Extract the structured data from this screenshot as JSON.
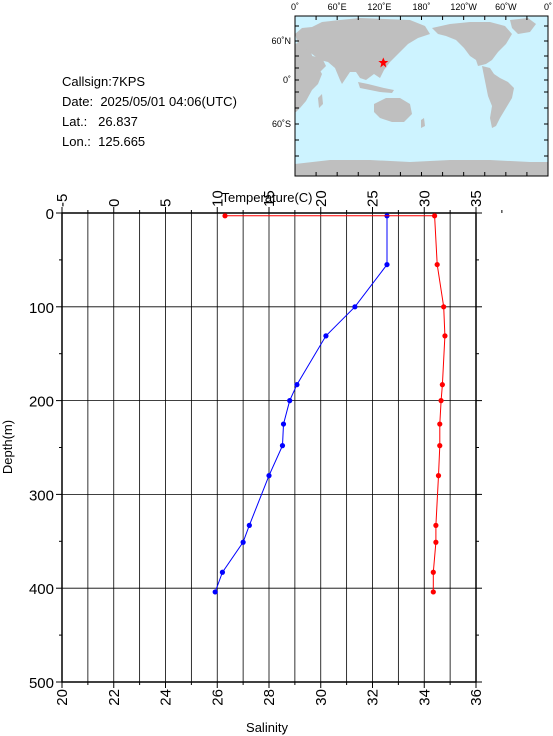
{
  "meta": {
    "callsign": "Callsign:7KPS",
    "date_label": "Date:",
    "date": "2025/05/01 04:06(UTC)",
    "lat_label": "Lat.:",
    "lat": "26.837",
    "lon_label": "Lon.:",
    "lon": "125.665"
  },
  "map": {
    "top_ticks": [
      "0˚",
      "60˚E",
      "120˚E",
      "180˚",
      "120˚W",
      "60˚W",
      "0˚"
    ],
    "left_ticks": [
      "60˚N",
      "0˚",
      "60˚S"
    ],
    "ocean_color": "#cdf3ff",
    "land_color": "#bfbfbf",
    "marker_color": "#ff0000"
  },
  "chart_data": {
    "type": "line",
    "xlabel_top": "Temperature(C)",
    "xlabel_bottom": "Salinity",
    "ylabel": "Depth(m)",
    "temperature_ticks": [
      "-5",
      "0",
      "5",
      "10",
      "15",
      "20",
      "25",
      "30",
      "35"
    ],
    "salinity_ticks": [
      "20",
      "22",
      "24",
      "26",
      "28",
      "30",
      "32",
      "34",
      "36"
    ],
    "depth_ticks": [
      "0",
      "100",
      "200",
      "300",
      "400",
      "500"
    ],
    "temperature_range": [
      -5,
      35
    ],
    "salinity_range": [
      20,
      36
    ],
    "depth_range": [
      0,
      500
    ],
    "grid": true,
    "series": [
      {
        "axis": "temperature",
        "color": "#0000ff",
        "points": [
          {
            "x": 26.4,
            "depth": 3
          },
          {
            "x": 26.4,
            "depth": 55
          },
          {
            "x": 23.3,
            "depth": 100
          },
          {
            "x": 20.5,
            "depth": 131
          },
          {
            "x": 17.7,
            "depth": 183
          },
          {
            "x": 17.0,
            "depth": 200
          },
          {
            "x": 16.4,
            "depth": 225
          },
          {
            "x": 16.3,
            "depth": 248
          },
          {
            "x": 15.0,
            "depth": 280
          },
          {
            "x": 13.1,
            "depth": 333
          },
          {
            "x": 12.5,
            "depth": 351
          },
          {
            "x": 10.5,
            "depth": 383
          },
          {
            "x": 9.8,
            "depth": 404
          }
        ]
      },
      {
        "axis": "salinity",
        "color": "#ff0000",
        "points": [
          {
            "x": 26.3,
            "depth": 3
          },
          {
            "x": 34.4,
            "depth": 3
          },
          {
            "x": 34.5,
            "depth": 55
          },
          {
            "x": 34.75,
            "depth": 100
          },
          {
            "x": 34.8,
            "depth": 131
          },
          {
            "x": 34.7,
            "depth": 183
          },
          {
            "x": 34.65,
            "depth": 200
          },
          {
            "x": 34.6,
            "depth": 225
          },
          {
            "x": 34.6,
            "depth": 248
          },
          {
            "x": 34.55,
            "depth": 280
          },
          {
            "x": 34.45,
            "depth": 333
          },
          {
            "x": 34.45,
            "depth": 351
          },
          {
            "x": 34.35,
            "depth": 383
          },
          {
            "x": 34.35,
            "depth": 404
          }
        ]
      }
    ]
  }
}
